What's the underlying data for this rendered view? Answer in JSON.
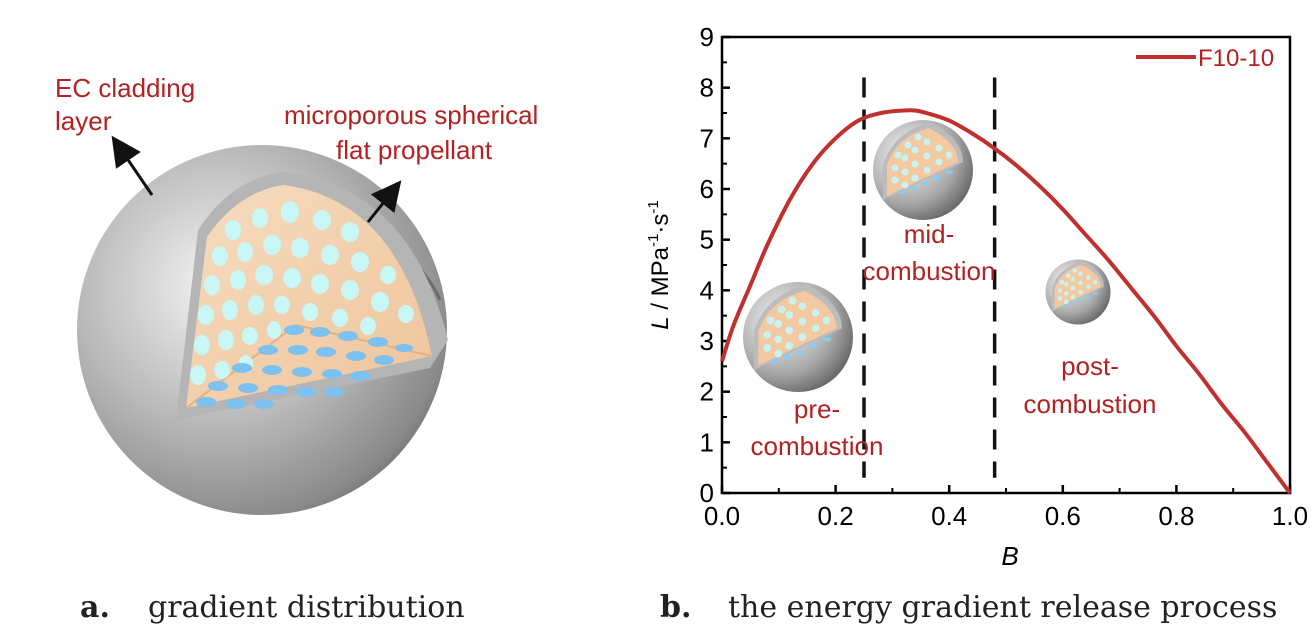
{
  "panel_a": {
    "labels": {
      "cladding": [
        "EC cladding",
        "layer"
      ],
      "propellant": [
        "microporous spherical",
        "flat propellant"
      ]
    },
    "caption": {
      "letter": "a.",
      "text": "gradient distribution"
    },
    "colors": {
      "label": "#b22222",
      "shell": "#a0a0a0",
      "core": "#f2c9a0",
      "pore": "#bff3f3",
      "pore_base": "#7cc1ef"
    }
  },
  "panel_b": {
    "caption": {
      "letter": "b.",
      "text": "the energy gradient release process"
    },
    "stages": {
      "pre": [
        "pre-",
        "combustion"
      ],
      "mid": [
        "mid-",
        "combustion"
      ],
      "post": [
        "post-",
        "combustion"
      ]
    }
  },
  "chart_data": {
    "type": "line",
    "title": "",
    "xlabel": "B",
    "ylabel": "L / MPa⁻¹·s⁻¹",
    "xlim": [
      0.0,
      1.0
    ],
    "ylim": [
      0,
      9
    ],
    "x_ticks": [
      "0.0",
      "0.2",
      "0.4",
      "0.6",
      "0.8",
      "1.0"
    ],
    "y_ticks": [
      "0",
      "1",
      "2",
      "3",
      "4",
      "5",
      "6",
      "7",
      "8",
      "9"
    ],
    "legend": {
      "placement": "top-right"
    },
    "grid": false,
    "stage_boundaries": [
      0.25,
      0.48
    ],
    "series": [
      {
        "name": "F10-10",
        "color": "#c0302e",
        "x": [
          0.0,
          0.02,
          0.05,
          0.08,
          0.12,
          0.16,
          0.2,
          0.24,
          0.28,
          0.32,
          0.34,
          0.36,
          0.4,
          0.44,
          0.48,
          0.52,
          0.56,
          0.6,
          0.64,
          0.68,
          0.72,
          0.76,
          0.8,
          0.84,
          0.88,
          0.92,
          0.96,
          0.99,
          1.0
        ],
        "values": [
          2.6,
          3.3,
          4.1,
          4.9,
          5.8,
          6.5,
          7.0,
          7.35,
          7.5,
          7.55,
          7.55,
          7.5,
          7.35,
          7.1,
          6.8,
          6.45,
          6.05,
          5.6,
          5.1,
          4.6,
          4.05,
          3.5,
          2.9,
          2.35,
          1.75,
          1.2,
          0.6,
          0.15,
          0.0
        ]
      }
    ]
  }
}
